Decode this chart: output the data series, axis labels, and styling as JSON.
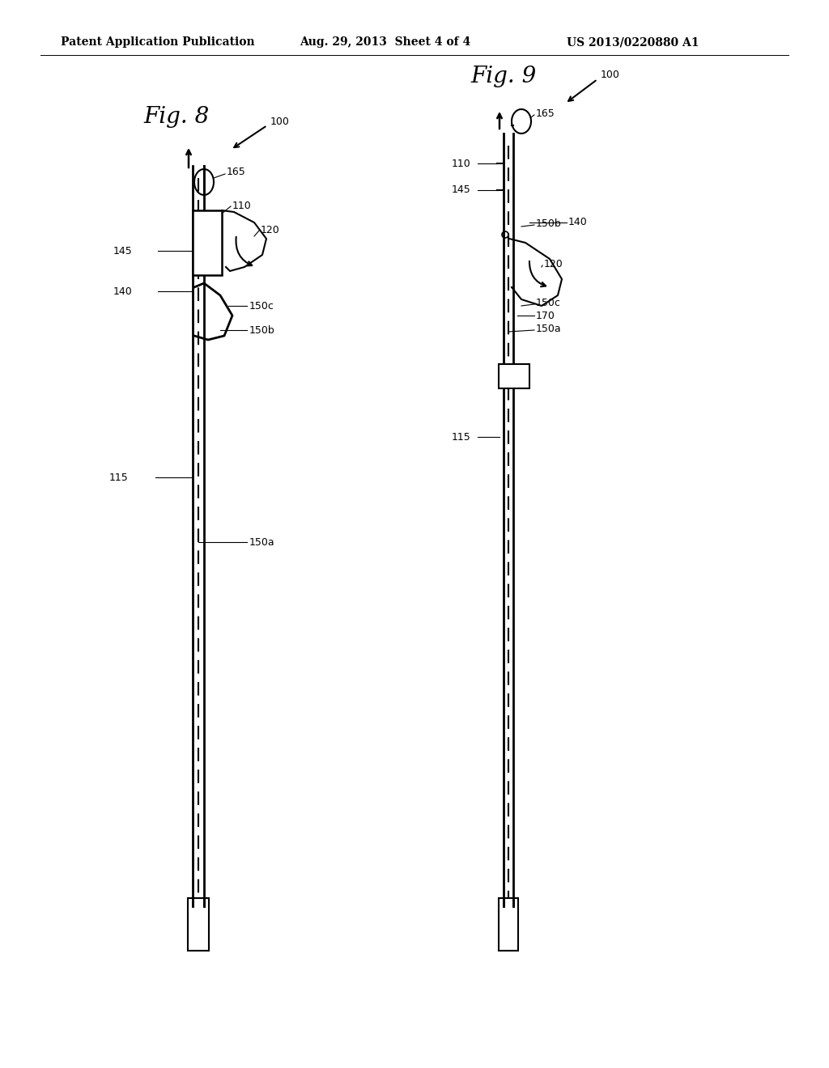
{
  "bg_color": "#ffffff",
  "header_text": "Patent Application Publication",
  "header_date": "Aug. 29, 2013  Sheet 4 of 4",
  "header_patent": "US 2013/0220880 A1",
  "fig8_title": "Fig. 8",
  "fig9_title": "Fig. 9"
}
